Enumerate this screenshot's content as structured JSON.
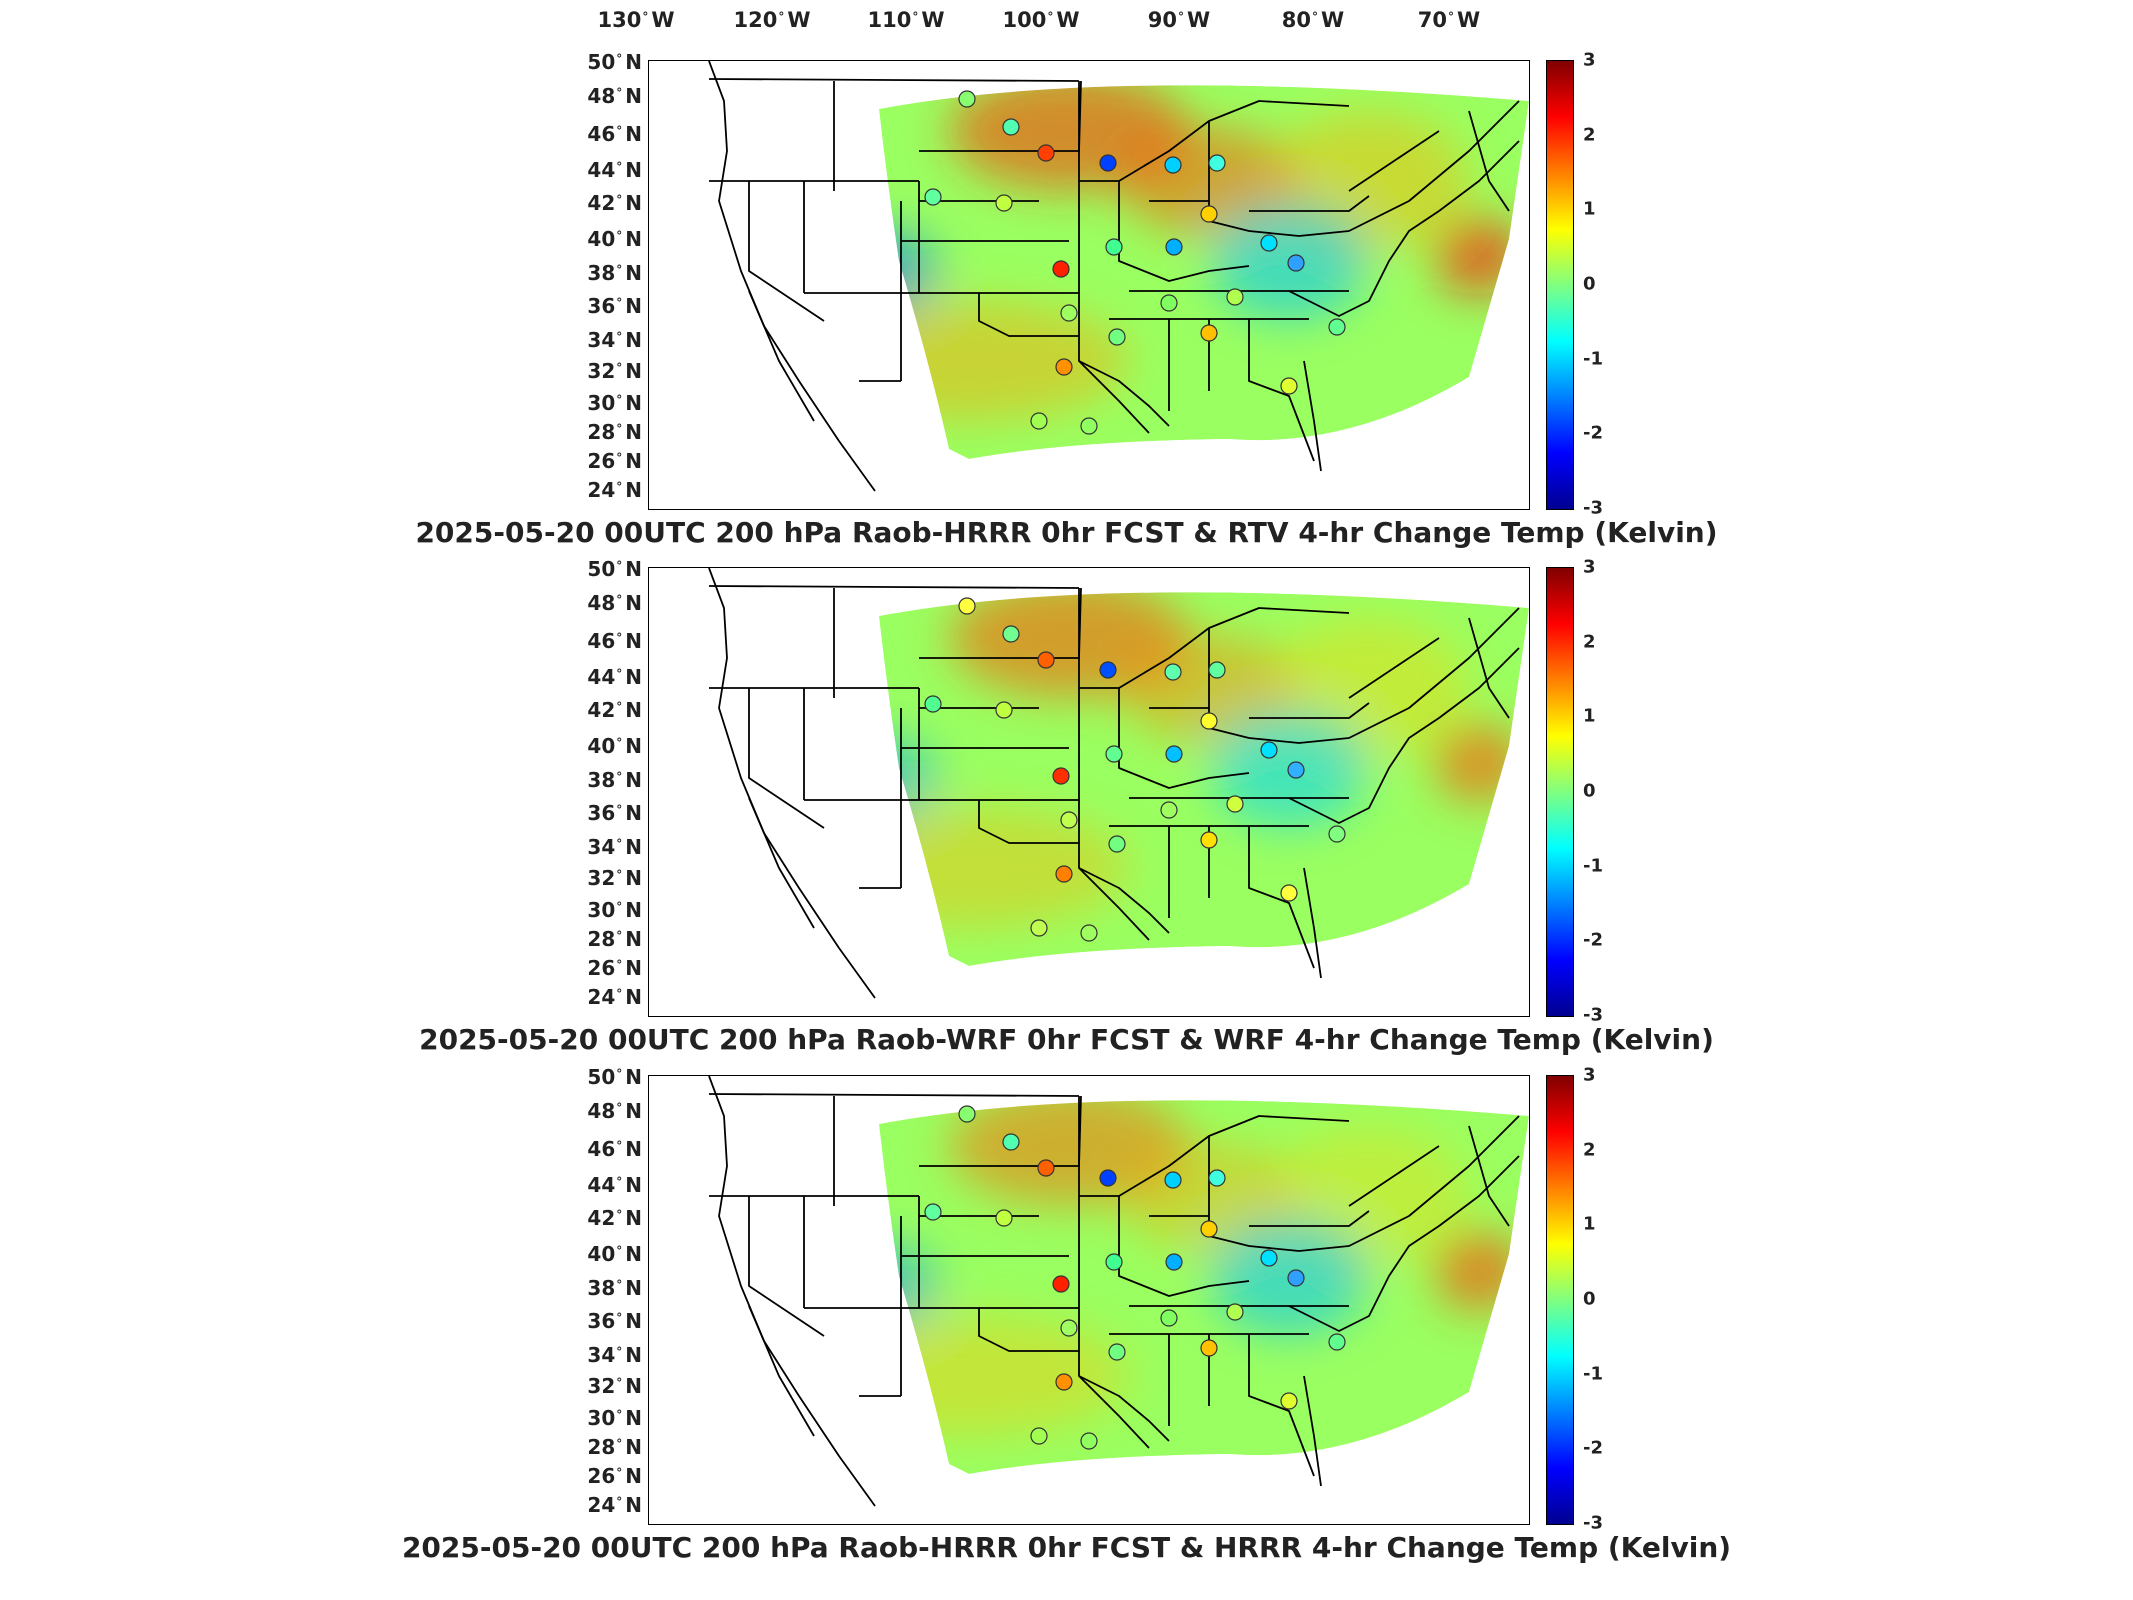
{
  "longitude_labels": [
    {
      "deg": "130",
      "dir": "W"
    },
    {
      "deg": "120",
      "dir": "W"
    },
    {
      "deg": "110",
      "dir": "W"
    },
    {
      "deg": "100",
      "dir": "W"
    },
    {
      "deg": "90",
      "dir": "W"
    },
    {
      "deg": "80",
      "dir": "W"
    },
    {
      "deg": "70",
      "dir": "W"
    }
  ],
  "latitude_labels": [
    {
      "deg": "50",
      "dir": "N"
    },
    {
      "deg": "48",
      "dir": "N"
    },
    {
      "deg": "46",
      "dir": "N"
    },
    {
      "deg": "44",
      "dir": "N"
    },
    {
      "deg": "42",
      "dir": "N"
    },
    {
      "deg": "40",
      "dir": "N"
    },
    {
      "deg": "38",
      "dir": "N"
    },
    {
      "deg": "36",
      "dir": "N"
    },
    {
      "deg": "34",
      "dir": "N"
    },
    {
      "deg": "32",
      "dir": "N"
    },
    {
      "deg": "30",
      "dir": "N"
    },
    {
      "deg": "28",
      "dir": "N"
    },
    {
      "deg": "26",
      "dir": "N"
    },
    {
      "deg": "24",
      "dir": "N"
    }
  ],
  "colorbar": {
    "ticks": [
      "3",
      "2",
      "1",
      "0",
      "-1",
      "-2",
      "-3"
    ],
    "range": [
      -3,
      3
    ],
    "colormap": "jet"
  },
  "panels": [
    {
      "title": "2025-05-20 00UTC 200 hPa Raob-HRRR 0hr FCST & RTV 4-hr Change Temp (Kelvin)",
      "field": "RTV",
      "blobs": [
        {
          "c": "#ff3000",
          "o": 0.55
        },
        {
          "c": "#ff5000",
          "o": 0.5
        },
        {
          "c": "#ffb000",
          "o": 0.45
        },
        {
          "c": "#0018ff",
          "o": 0.8
        },
        {
          "c": "#0090ff",
          "o": 0.55
        },
        {
          "c": "#ff2000",
          "o": 0.7
        },
        {
          "c": "#0070ff",
          "o": 0.5
        },
        {
          "c": "#ff1000",
          "o": 0.6
        },
        {
          "c": "#ffa000",
          "o": 0.45
        },
        {
          "c": "#00c0ff",
          "o": 0.55
        }
      ],
      "stations": [
        "#88ff70",
        "#50ffb0",
        "#ff4000",
        "#0040ff",
        "#00d0ff",
        "#40ffe0",
        "#c0ff40",
        "#60ffa0",
        "#ff2000",
        "#40ff90",
        "#00b0ff",
        "#ffd000",
        "#a0ff60",
        "#70ff80",
        "#ff9000",
        "#ffc000",
        "#80ff60",
        "#00e0ff",
        "#b0ff50",
        "#60ff90",
        "#30a0ff",
        "#e0ff30",
        "#90ff60",
        "#a0ff50"
      ]
    },
    {
      "title": "2025-05-20 00UTC 200 hPa Raob-WRF 0hr FCST & WRF 4-hr Change Temp (Kelvin)",
      "field": "WRF",
      "blobs": [
        {
          "c": "#ff5000",
          "o": 0.55
        },
        {
          "c": "#ff8000",
          "o": 0.45
        },
        {
          "c": "#ffd000",
          "o": 0.4
        },
        {
          "c": "#0010e0",
          "o": 0.85
        },
        {
          "c": "#0090ff",
          "o": 0.5
        },
        {
          "c": "#c00000",
          "o": 0.8
        },
        {
          "c": "#00a0ff",
          "o": 0.45
        },
        {
          "c": "#ff5000",
          "o": 0.6
        },
        {
          "c": "#ffb000",
          "o": 0.4
        },
        {
          "c": "#00d0ff",
          "o": 0.55
        }
      ],
      "stations": [
        "#ffff40",
        "#70ff90",
        "#ff6000",
        "#0050ff",
        "#60ffb0",
        "#60ffa0",
        "#c0ff40",
        "#50ff90",
        "#ff3000",
        "#60ff90",
        "#00c0ff",
        "#ffff30",
        "#c0ff50",
        "#70ff80",
        "#ff8000",
        "#ffe000",
        "#a0ff60",
        "#00e0ff",
        "#d0ff40",
        "#80ff80",
        "#30b0ff",
        "#ffff40",
        "#a0ff60",
        "#c0ff50"
      ]
    },
    {
      "title": "2025-05-20 00UTC 200 hPa Raob-HRRR 0hr FCST & HRRR 4-hr Change Temp (Kelvin)",
      "field": "HRRR",
      "blobs": [
        {
          "c": "#ff6000",
          "o": 0.5
        },
        {
          "c": "#ffa000",
          "o": 0.4
        },
        {
          "c": "#ffd000",
          "o": 0.35
        },
        {
          "c": "#0020f0",
          "o": 0.8
        },
        {
          "c": "#0080ff",
          "o": 0.5
        },
        {
          "c": "#d00000",
          "o": 0.75
        },
        {
          "c": "#0090ff",
          "o": 0.45
        },
        {
          "c": "#ff4000",
          "o": 0.6
        },
        {
          "c": "#ffc000",
          "o": 0.4
        },
        {
          "c": "#00c0ff",
          "o": 0.55
        }
      ],
      "stations": [
        "#88ff70",
        "#50ffb0",
        "#ff6000",
        "#0040ff",
        "#00d0ff",
        "#40ffe0",
        "#c0ff40",
        "#60ffa0",
        "#ff2000",
        "#40ff90",
        "#00b0ff",
        "#ffd000",
        "#a0ff60",
        "#70ff80",
        "#ff9000",
        "#ffc000",
        "#80ff60",
        "#00e0ff",
        "#b0ff50",
        "#60ff90",
        "#30a0ff",
        "#e0ff30",
        "#90ff60",
        "#a0ff50"
      ]
    }
  ]
}
